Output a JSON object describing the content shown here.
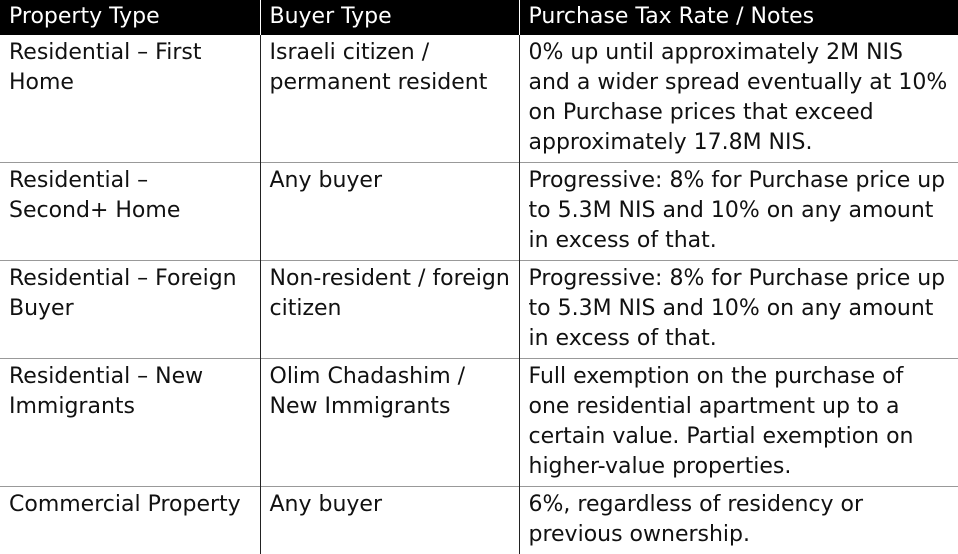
{
  "table": {
    "headers": [
      "Property Type",
      "Buyer Type",
      "Purchase Tax Rate / Notes"
    ],
    "rows": [
      {
        "property_type": "Residential – First Home",
        "buyer_type": "Israeli citizen / permanent resident",
        "notes": "0% up until approximately 2M NIS and a wider spread eventually at 10% on Purchase prices that exceed approximately 17.8M NIS."
      },
      {
        "property_type": "Residential – Second+ Home",
        "buyer_type": "Any buyer",
        "notes": "Progressive: 8% for Purchase price up to 5.3M NIS and 10% on any amount in excess of that."
      },
      {
        "property_type": "Residential – Foreign Buyer",
        "buyer_type": "Non-resident / foreign citizen",
        "notes": "Progressive: 8% for Purchase price up to 5.3M NIS and 10% on any amount in excess of that."
      },
      {
        "property_type": "Residential – New Immigrants",
        "buyer_type": "Olim Chadashim / New Immigrants",
        "notes": "Full exemption on the purchase of one residential apartment up to a certain value. Partial exemption on higher-value properties."
      },
      {
        "property_type": "Commercial Property",
        "buyer_type": "Any buyer",
        "notes": "6%, regardless of residency or previous ownership."
      }
    ]
  }
}
